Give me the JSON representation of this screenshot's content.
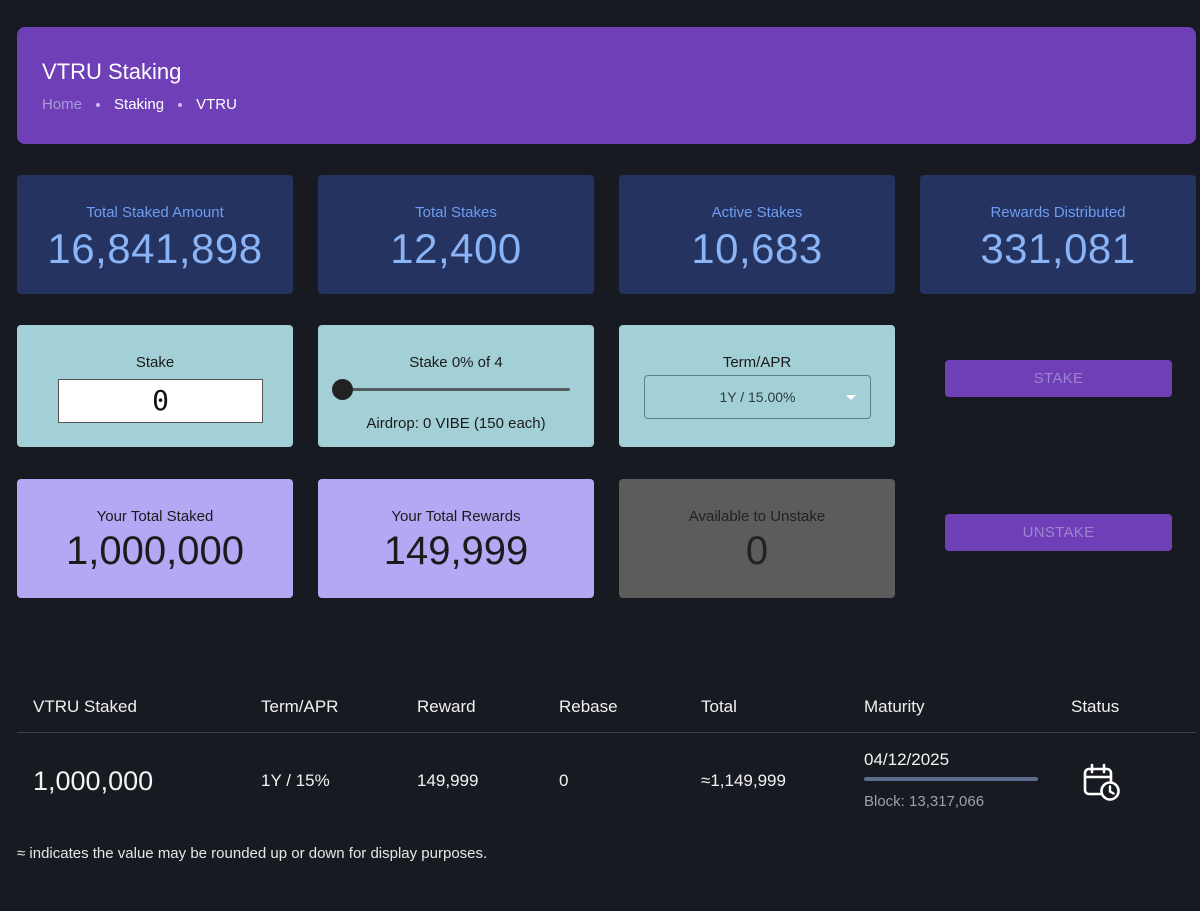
{
  "header": {
    "title": "VTRU Staking",
    "breadcrumb": [
      "Home",
      "Staking",
      "VTRU"
    ]
  },
  "stats": [
    {
      "label": "Total Staked Amount",
      "value": "16,841,898"
    },
    {
      "label": "Total Stakes",
      "value": "12,400"
    },
    {
      "label": "Active Stakes",
      "value": "10,683"
    },
    {
      "label": "Rewards Distributed",
      "value": "331,081"
    }
  ],
  "stake_form": {
    "stake_label": "Stake",
    "stake_value": "0",
    "slider_label": "Stake 0% of 4",
    "slider_fraction": 0,
    "airdrop": "Airdrop: 0 VIBE (150 each)",
    "term_label": "Term/APR",
    "term_selected": "1Y / 15.00%"
  },
  "buttons": {
    "stake": "STAKE",
    "unstake": "UNSTAKE"
  },
  "mine": [
    {
      "label": "Your Total Staked",
      "value": "1,000,000"
    },
    {
      "label": "Your Total Rewards",
      "value": "149,999"
    },
    {
      "label": "Available to Unstake",
      "value": "0"
    }
  ],
  "table": {
    "headers": [
      "VTRU Staked",
      "Term/APR",
      "Reward",
      "Rebase",
      "Total",
      "Maturity",
      "Status"
    ],
    "rows": [
      {
        "staked": "1,000,000",
        "term": "1Y / 15%",
        "reward": "149,999",
        "rebase": "0",
        "total": "≈1,149,999",
        "maturity_date": "04/12/2025",
        "maturity_progress": 1,
        "block": "Block: 13,317,066",
        "status_icon": "calendar-clock-icon"
      }
    ]
  },
  "footnote": "≈ indicates the value may be rounded up or down for display purposes.",
  "colors": {
    "background": "#181a21",
    "accent": "#6f3fb7",
    "stat_card": "#24335f",
    "form_card": "#a3cfd6",
    "mine_card": "#b4a7f4",
    "avail_card": "#5c5c5c"
  }
}
